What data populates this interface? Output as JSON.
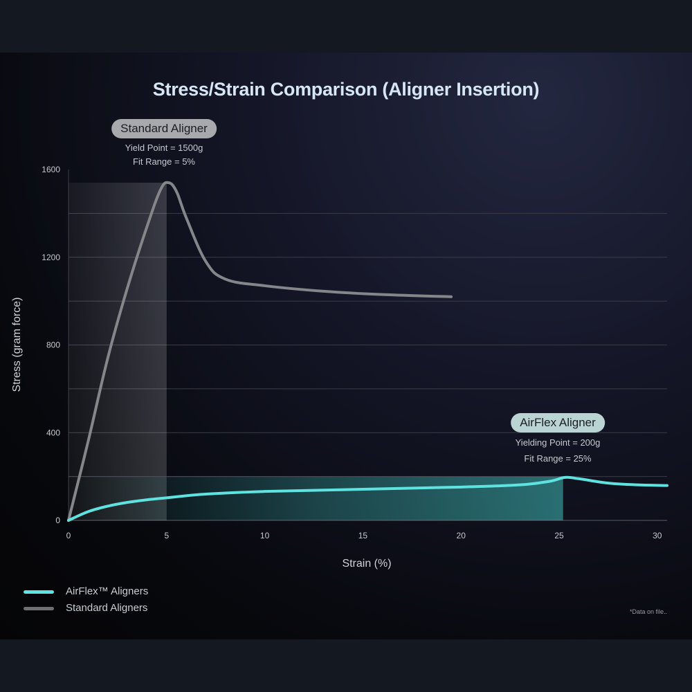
{
  "chart_data": {
    "type": "line",
    "title": "Stress/Strain Comparison (Aligner Insertion)",
    "xlabel": "Strain (%)",
    "ylabel": "Stress (gram force)",
    "xlim": [
      0,
      30.5
    ],
    "ylim": [
      0,
      1600
    ],
    "x_ticks": [
      0,
      5,
      10,
      15,
      20,
      25,
      30
    ],
    "y_ticks": [
      0,
      400,
      800,
      1200,
      1600
    ],
    "grid": "horizontal",
    "legend_placement": "bottom-left",
    "series": [
      {
        "name": "AirFlex™ Aligners",
        "color": "#5fe3e0",
        "x": [
          0,
          1,
          2,
          3,
          4,
          5,
          7,
          10,
          15,
          20,
          23,
          24.5,
          25.3,
          26,
          27.5,
          29,
          30.5
        ],
        "y": [
          0,
          40,
          65,
          82,
          94,
          103,
          120,
          132,
          142,
          152,
          162,
          178,
          196,
          190,
          170,
          162,
          159
        ]
      },
      {
        "name": "Standard Aligners",
        "color": "#85868a",
        "x": [
          0,
          1,
          2,
          3,
          4,
          4.7,
          5.1,
          5.5,
          6,
          7,
          8,
          10,
          13,
          16,
          19.5
        ],
        "y": [
          0,
          360,
          740,
          1060,
          1340,
          1510,
          1540,
          1500,
          1380,
          1180,
          1100,
          1070,
          1045,
          1030,
          1020
        ]
      }
    ],
    "annotations": [
      {
        "label": "Standard Aligner",
        "lines": [
          "Yield Point = 1500g",
          "Fit Range = 5%"
        ],
        "fit_range": [
          0,
          5
        ],
        "level": 1540
      },
      {
        "label": "AirFlex Aligner",
        "lines": [
          "Yielding Point = 200g",
          "Fit Range = 25%"
        ],
        "fit_range": [
          0,
          25.2
        ],
        "level": 200
      }
    ],
    "footnote": "*Data on file.."
  }
}
